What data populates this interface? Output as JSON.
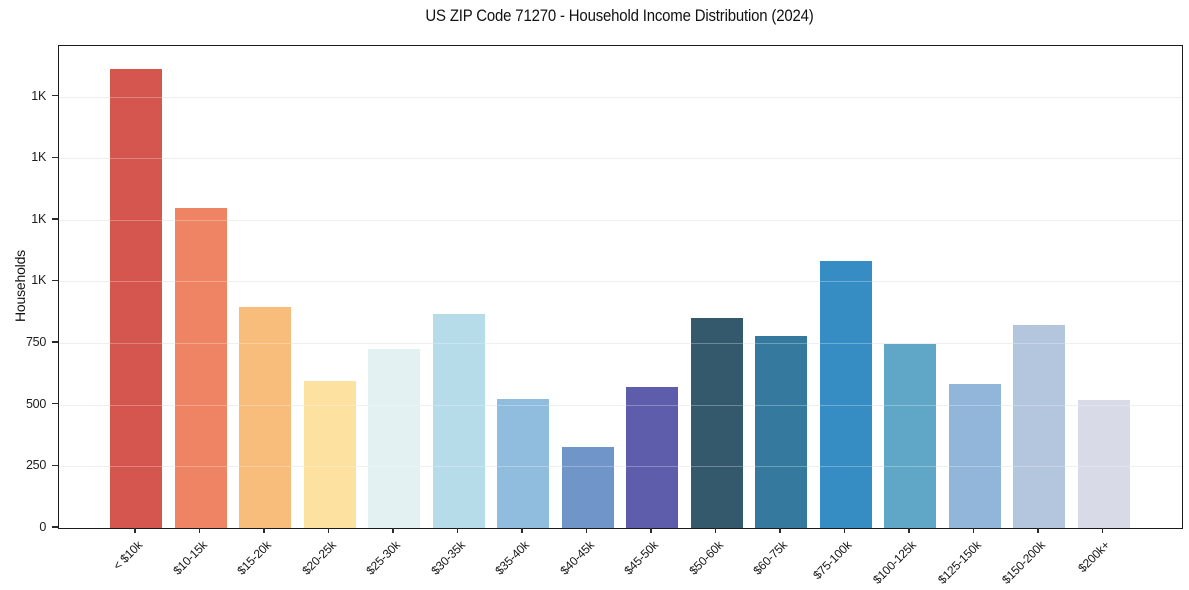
{
  "chart_data": {
    "type": "bar",
    "title": "US ZIP Code 71270 - Household Income Distribution (2024)",
    "xlabel": "",
    "ylabel": "Households",
    "categories": [
      "< $10k",
      "$10-15k",
      "$15-20k",
      "$20-25k",
      "$25-30k",
      "$30-35k",
      "$35-40k",
      "$40-45k",
      "$45-50k",
      "$50-60k",
      "$60-75k",
      "$75-100k",
      "$100-125k",
      "$125-150k",
      "$150-200k",
      "$200k+"
    ],
    "values": [
      1860,
      1300,
      895,
      595,
      725,
      870,
      525,
      330,
      570,
      850,
      780,
      1085,
      745,
      585,
      825,
      520
    ],
    "bar_colors": [
      "#d5554f",
      "#ef8465",
      "#f9bd7b",
      "#fde1a0",
      "#e3f1f3",
      "#b6dcea",
      "#90bddd",
      "#7095c9",
      "#5d5dab",
      "#34596c",
      "#357a9e",
      "#368dc4",
      "#60a6c7",
      "#91b6d9",
      "#b4c5de",
      "#d8dae8"
    ],
    "ylim": [
      0,
      1955
    ],
    "yticks": [
      {
        "value": 0,
        "label": "0"
      },
      {
        "value": 250,
        "label": "250"
      },
      {
        "value": 500,
        "label": "500"
      },
      {
        "value": 750,
        "label": "750"
      },
      {
        "value": 1000,
        "label": "1K"
      },
      {
        "value": 1250,
        "label": "1K"
      },
      {
        "value": 1500,
        "label": "1K"
      },
      {
        "value": 1750,
        "label": "1K"
      }
    ],
    "grid": "horizontal",
    "legend": "none",
    "colors": {
      "background": "#ffffff",
      "gridline": "#e9e9ee",
      "spine": "#1b1b1b",
      "tick_text": "#1c1c1c"
    }
  }
}
